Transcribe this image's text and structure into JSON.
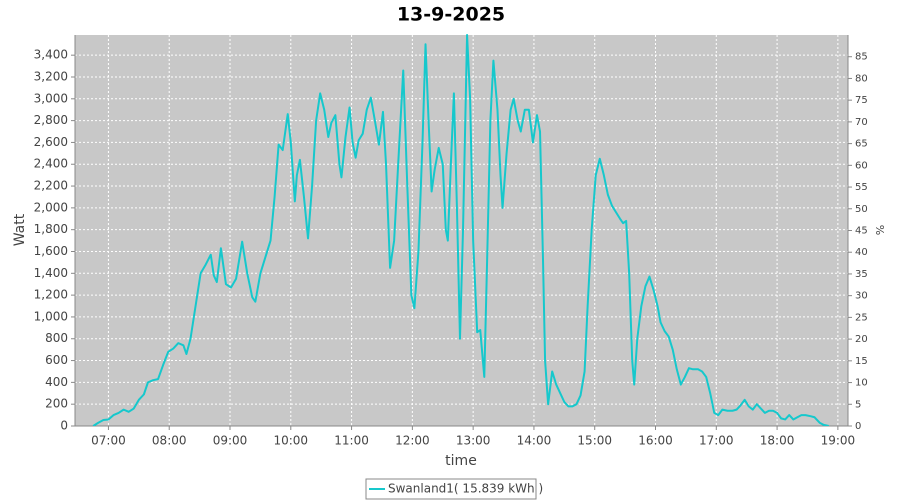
{
  "chart_data": {
    "type": "line",
    "title": "13-9-2025",
    "x_label": "time",
    "y_label": "Watt",
    "y2_label": "%",
    "xlim": [
      387,
      1150
    ],
    "xticks": [
      {
        "value": 420,
        "label": "07:00"
      },
      {
        "value": 480,
        "label": "08:00"
      },
      {
        "value": 540,
        "label": "09:00"
      },
      {
        "value": 600,
        "label": "10:00"
      },
      {
        "value": 660,
        "label": "11:00"
      },
      {
        "value": 720,
        "label": "12:00"
      },
      {
        "value": 780,
        "label": "13:00"
      },
      {
        "value": 840,
        "label": "14:00"
      },
      {
        "value": 900,
        "label": "15:00"
      },
      {
        "value": 960,
        "label": "16:00"
      },
      {
        "value": 1020,
        "label": "17:00"
      },
      {
        "value": 1080,
        "label": "18:00"
      },
      {
        "value": 1140,
        "label": "19:00"
      }
    ],
    "ylim": [
      0,
      3585
    ],
    "yticks": [
      0,
      200,
      400,
      600,
      800,
      {
        "value": 1000,
        "label": "1,000"
      },
      {
        "value": 1200,
        "label": "1,200"
      },
      {
        "value": 1400,
        "label": "1,400"
      },
      {
        "value": 1600,
        "label": "1,600"
      },
      {
        "value": 1800,
        "label": "1,800"
      },
      {
        "value": 2000,
        "label": "2,000"
      },
      {
        "value": 2200,
        "label": "2,200"
      },
      {
        "value": 2400,
        "label": "2,400"
      },
      {
        "value": 2600,
        "label": "2,600"
      },
      {
        "value": 2800,
        "label": "2,800"
      },
      {
        "value": 3000,
        "label": "3,000"
      },
      {
        "value": 3200,
        "label": "3,200"
      },
      {
        "value": 3400,
        "label": "3,400"
      }
    ],
    "y2lim": [
      0,
      90
    ],
    "y2ticks": [
      0,
      5,
      10,
      15,
      20,
      25,
      30,
      35,
      40,
      45,
      50,
      55,
      60,
      65,
      70,
      75,
      80,
      85
    ],
    "grid": true,
    "legend": "bottom",
    "x": [
      405,
      410,
      415,
      420,
      425,
      430,
      435,
      440,
      445,
      450,
      455,
      459,
      464,
      469,
      474,
      479,
      484,
      489,
      494,
      497,
      501,
      506,
      511,
      516,
      521,
      524,
      527,
      531,
      536,
      541,
      546,
      552,
      557,
      562,
      565,
      570,
      575,
      580,
      584,
      588,
      592,
      597,
      600,
      604,
      606,
      609,
      613,
      617,
      621,
      625,
      629,
      633,
      637,
      640,
      644,
      648,
      650,
      654,
      658,
      661,
      664,
      667,
      671,
      675,
      679,
      683,
      687,
      691,
      694,
      698,
      702,
      706,
      711,
      715,
      719,
      722,
      726,
      730,
      733,
      736,
      739,
      742,
      746,
      750,
      753,
      755,
      758,
      761,
      764,
      767,
      770,
      774,
      777,
      780,
      784,
      787,
      791,
      794,
      797,
      800,
      804,
      807,
      809,
      813,
      817,
      820,
      824,
      827,
      831,
      835,
      839,
      843,
      846,
      849,
      851,
      854,
      856,
      858,
      862,
      866,
      870,
      874,
      878,
      882,
      886,
      890,
      893,
      897,
      901,
      905,
      909,
      913,
      917,
      921,
      925,
      928,
      931,
      934,
      937,
      939,
      942,
      946,
      950,
      954,
      958,
      962,
      965,
      969,
      973,
      977,
      981,
      985,
      989,
      993,
      997,
      1002,
      1006,
      1010,
      1014,
      1018,
      1022,
      1026,
      1031,
      1036,
      1040,
      1044,
      1048,
      1052,
      1056,
      1060,
      1064,
      1068,
      1072,
      1076,
      1080,
      1084,
      1088,
      1092,
      1096,
      1100,
      1104,
      1108,
      1113,
      1117,
      1122,
      1126,
      1131
    ],
    "series": [
      {
        "name": "Swanland1( 15.839 kWh )",
        "color": "#16c8cc",
        "values": [
          0,
          30,
          55,
          60,
          100,
          120,
          150,
          130,
          160,
          240,
          290,
          400,
          420,
          430,
          560,
          680,
          710,
          760,
          740,
          660,
          800,
          1100,
          1400,
          1480,
          1570,
          1380,
          1320,
          1630,
          1300,
          1270,
          1350,
          1690,
          1400,
          1180,
          1140,
          1400,
          1550,
          1700,
          2100,
          2580,
          2530,
          2860,
          2600,
          2060,
          2300,
          2440,
          2100,
          1720,
          2200,
          2800,
          3050,
          2900,
          2650,
          2780,
          2850,
          2400,
          2280,
          2650,
          2920,
          2600,
          2460,
          2620,
          2680,
          2900,
          3010,
          2800,
          2580,
          2880,
          2400,
          1450,
          1700,
          2400,
          3260,
          2200,
          1200,
          1080,
          1600,
          2600,
          3500,
          2800,
          2150,
          2350,
          2550,
          2400,
          1800,
          1700,
          2400,
          3050,
          2000,
          800,
          1800,
          3585,
          3000,
          1700,
          860,
          880,
          450,
          1600,
          2800,
          3350,
          2900,
          2300,
          2000,
          2500,
          2900,
          3000,
          2800,
          2700,
          2900,
          2900,
          2600,
          2850,
          2700,
          1500,
          600,
          200,
          350,
          500,
          380,
          300,
          220,
          180,
          180,
          200,
          280,
          500,
          1100,
          1800,
          2300,
          2450,
          2300,
          2120,
          2020,
          1960,
          1900,
          1860,
          1880,
          1400,
          600,
          380,
          800,
          1100,
          1280,
          1370,
          1250,
          1100,
          950,
          870,
          820,
          700,
          520,
          380,
          450,
          530,
          520,
          520,
          500,
          450,
          300,
          120,
          100,
          150,
          140,
          140,
          150,
          190,
          240,
          180,
          150,
          200,
          160,
          120,
          140,
          140,
          120,
          70,
          60,
          100,
          60,
          80,
          100,
          100,
          90,
          80,
          30,
          10,
          0
        ]
      }
    ]
  }
}
